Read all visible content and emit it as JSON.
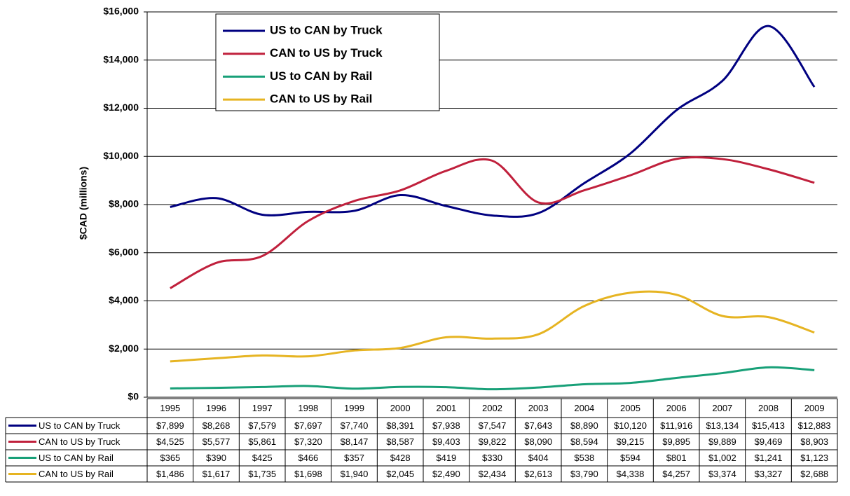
{
  "chart_data": {
    "type": "line",
    "y_label": "$CAD (millions)",
    "categories": [
      "1995",
      "1996",
      "1997",
      "1998",
      "1999",
      "2000",
      "2001",
      "2002",
      "2003",
      "2004",
      "2005",
      "2006",
      "2007",
      "2008",
      "2009"
    ],
    "series": [
      {
        "name": "US to CAN by Truck",
        "color": "#000080",
        "values": [
          7899,
          8268,
          7579,
          7697,
          7740,
          8391,
          7938,
          7547,
          7643,
          8890,
          10120,
          11916,
          13134,
          15413,
          12883
        ],
        "value_labels": [
          "$7,899",
          "$8,268",
          "$7,579",
          "$7,697",
          "$7,740",
          "$8,391",
          "$7,938",
          "$7,547",
          "$7,643",
          "$8,890",
          "$10,120",
          "$11,916",
          "$13,134",
          "$15,413",
          "$12,883"
        ]
      },
      {
        "name": "CAN to US by Truck",
        "color": "#c0203c",
        "values": [
          4525,
          5577,
          5861,
          7320,
          8147,
          8587,
          9403,
          9822,
          8090,
          8594,
          9215,
          9895,
          9889,
          9469,
          8903
        ],
        "value_labels": [
          "$4,525",
          "$5,577",
          "$5,861",
          "$7,320",
          "$8,147",
          "$8,587",
          "$9,403",
          "$9,822",
          "$8,090",
          "$8,594",
          "$9,215",
          "$9,895",
          "$9,889",
          "$9,469",
          "$8,903"
        ]
      },
      {
        "name": "US to CAN by Rail",
        "color": "#18a078",
        "values": [
          365,
          390,
          425,
          466,
          357,
          428,
          419,
          330,
          404,
          538,
          594,
          801,
          1002,
          1241,
          1123
        ],
        "value_labels": [
          "$365",
          "$390",
          "$425",
          "$466",
          "$357",
          "$428",
          "$419",
          "$330",
          "$404",
          "$538",
          "$594",
          "$801",
          "$1,002",
          "$1,241",
          "$1,123"
        ]
      },
      {
        "name": "CAN to US by Rail",
        "color": "#e6b422",
        "values": [
          1486,
          1617,
          1735,
          1698,
          1940,
          2045,
          2490,
          2434,
          2613,
          3790,
          4338,
          4257,
          3374,
          3327,
          2688
        ],
        "value_labels": [
          "$1,486",
          "$1,617",
          "$1,735",
          "$1,698",
          "$1,940",
          "$2,045",
          "$2,490",
          "$2,434",
          "$2,613",
          "$3,790",
          "$4,338",
          "$4,257",
          "$3,374",
          "$3,327",
          "$2,688"
        ]
      }
    ],
    "ylim": [
      0,
      16000
    ],
    "yticks": [
      {
        "value": 0,
        "label": "$0"
      },
      {
        "value": 2000,
        "label": "$2,000"
      },
      {
        "value": 4000,
        "label": "$4,000"
      },
      {
        "value": 6000,
        "label": "$6,000"
      },
      {
        "value": 8000,
        "label": "$8,000"
      },
      {
        "value": 10000,
        "label": "$10,000"
      },
      {
        "value": 12000,
        "label": "$12,000"
      },
      {
        "value": 14000,
        "label": "$14,000"
      },
      {
        "value": 16000,
        "label": "$16,000"
      }
    ],
    "grid": true
  }
}
